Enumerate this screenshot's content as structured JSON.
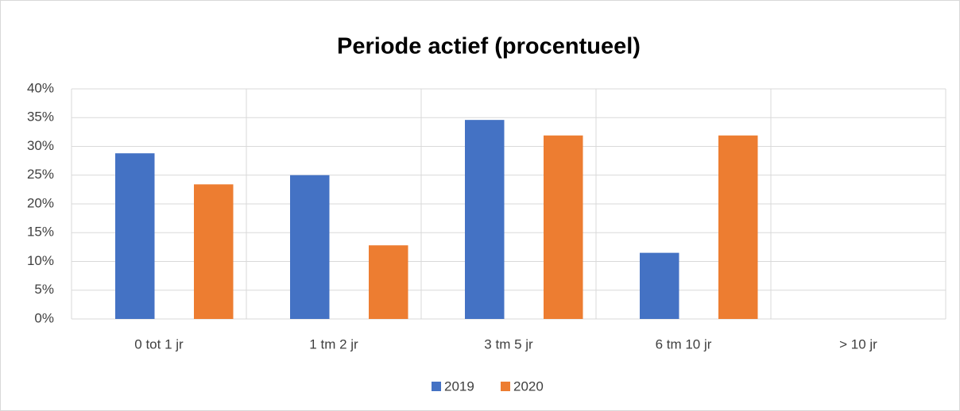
{
  "chart_data": {
    "type": "bar",
    "title": "Periode actief (procentueel)",
    "categories": [
      "0 tot 1 jr",
      "1 tm 2 jr",
      "3 tm 5 jr",
      "6 tm 10 jr",
      "> 10 jr"
    ],
    "series": [
      {
        "name": "2019",
        "color": "#4472c4",
        "values": [
          28.8,
          25,
          34.6,
          11.5,
          0
        ]
      },
      {
        "name": "2020",
        "color": "#ed7d31",
        "values": [
          23.4,
          12.8,
          31.9,
          31.9,
          0
        ]
      }
    ],
    "ylim": [
      0,
      40
    ],
    "yticks": [
      {
        "value": 0,
        "label": "0%"
      },
      {
        "value": 5,
        "label": "5%"
      },
      {
        "value": 10,
        "label": "10%"
      },
      {
        "value": 15,
        "label": "15%"
      },
      {
        "value": 20,
        "label": "20%"
      },
      {
        "value": 25,
        "label": "25%"
      },
      {
        "value": 30,
        "label": "30%"
      },
      {
        "value": 35,
        "label": "35%"
      },
      {
        "value": 40,
        "label": "40%"
      }
    ],
    "grid": true,
    "legend": "bottom"
  }
}
